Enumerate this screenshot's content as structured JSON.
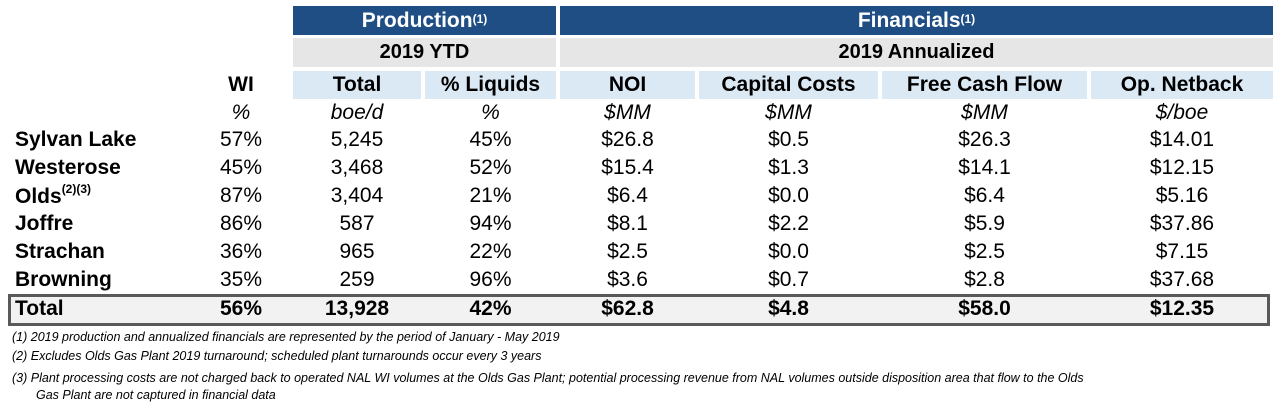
{
  "header": {
    "production": {
      "label": "Production",
      "sup": "(1)"
    },
    "financials": {
      "label": "Financials",
      "sup": "(1)"
    },
    "production_sub": "2019 YTD",
    "financials_sub": "2019 Annualized"
  },
  "columns": [
    {
      "label": "WI",
      "unit": "%"
    },
    {
      "label": "Total",
      "unit": "boe/d"
    },
    {
      "label": "% Liquids",
      "unit": "%"
    },
    {
      "label": "NOI",
      "unit": "$MM"
    },
    {
      "label": "Capital Costs",
      "unit": "$MM"
    },
    {
      "label": "Free Cash Flow",
      "unit": "$MM"
    },
    {
      "label": "Op. Netback",
      "unit": "$/boe"
    }
  ],
  "rows": [
    {
      "label": "Sylvan Lake",
      "sup": "",
      "values": [
        "57%",
        "5,245",
        "45%",
        "$26.8",
        "$0.5",
        "$26.3",
        "$14.01"
      ]
    },
    {
      "label": "Westerose",
      "sup": "",
      "values": [
        "45%",
        "3,468",
        "52%",
        "$15.4",
        "$1.3",
        "$14.1",
        "$12.15"
      ]
    },
    {
      "label": "Olds",
      "sup": "(2)(3)",
      "values": [
        "87%",
        "3,404",
        "21%",
        "$6.4",
        "$0.0",
        "$6.4",
        "$5.16"
      ]
    },
    {
      "label": "Joffre",
      "sup": "",
      "values": [
        "86%",
        "587",
        "94%",
        "$8.1",
        "$2.2",
        "$5.9",
        "$37.86"
      ]
    },
    {
      "label": "Strachan",
      "sup": "",
      "values": [
        "36%",
        "965",
        "22%",
        "$2.5",
        "$0.0",
        "$2.5",
        "$7.15"
      ]
    },
    {
      "label": "Browning",
      "sup": "",
      "values": [
        "35%",
        "259",
        "96%",
        "$3.6",
        "$0.7",
        "$2.8",
        "$37.68"
      ]
    }
  ],
  "total": {
    "label": "Total",
    "values": [
      "56%",
      "13,928",
      "42%",
      "$62.8",
      "$4.8",
      "$58.0",
      "$12.35"
    ]
  },
  "notes": [
    "(1)  2019 production and annualized financials are represented by the period of January - May 2019",
    "(2)  Excludes Olds Gas Plant 2019 turnaround; scheduled plant turnarounds occur every 3 years",
    "(3)  Plant processing costs are not charged back to operated NAL WI volumes at the Olds Gas Plant; potential processing revenue from NAL volumes outside disposition area that flow to the Olds",
    "Gas Plant are not captured in financial data"
  ],
  "colors": {
    "header_dark": "#1f4e85",
    "header_grey": "#e6e6e6",
    "col_head_light": "#dbe9f4",
    "total_border": "#595959"
  }
}
